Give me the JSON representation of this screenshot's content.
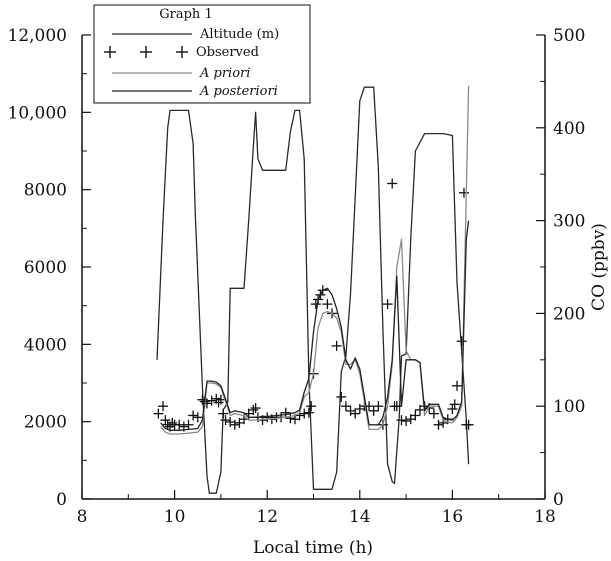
{
  "chart_data": {
    "type": "line",
    "legend": {
      "title": "Graph 1",
      "placement": "top-left",
      "entries": [
        "Altitude (m)",
        "Observed",
        "A priori",
        "A posteriori"
      ]
    },
    "xlabel": "Local time (h)",
    "ylabel_left": "",
    "ylabel_right": "CO (ppbv)",
    "xlim": [
      8,
      18
    ],
    "ylim_left": [
      0,
      12000
    ],
    "ylim_right": [
      0,
      500
    ],
    "x_ticks": [
      "8",
      "10",
      "12",
      "14",
      "16",
      "18"
    ],
    "y_left_ticks": [
      "0",
      "2000",
      "4000",
      "6000",
      "8000",
      "10,000",
      "12,000"
    ],
    "y_right_ticks": [
      "0",
      "100",
      "200",
      "300",
      "400",
      "500"
    ],
    "grid": false,
    "series": [
      {
        "name": "Altitude (m)",
        "axis": "left",
        "style": "line",
        "color": "#2a2a2a",
        "x": [
          9.62,
          9.75,
          9.85,
          9.9,
          10.1,
          10.3,
          10.4,
          10.45,
          10.6,
          10.7,
          10.75,
          10.8,
          10.9,
          11.0,
          11.05,
          11.15,
          11.2,
          11.4,
          11.5,
          11.6,
          11.7,
          11.75,
          11.8,
          11.9,
          12.0,
          12.2,
          12.4,
          12.5,
          12.6,
          12.7,
          12.8,
          12.9,
          13.0,
          13.1,
          13.2,
          13.4,
          13.5,
          13.6,
          13.7,
          13.8,
          13.9,
          14.0,
          14.1,
          14.2,
          14.3,
          14.4,
          14.5,
          14.6,
          14.7,
          14.75,
          14.85,
          14.9,
          15.0,
          15.1,
          15.2,
          15.4,
          15.5,
          15.6,
          15.8,
          16.0,
          16.1,
          16.3,
          16.35
        ],
        "values": [
          3600,
          7200,
          9600,
          10050,
          10050,
          10050,
          9200,
          7300,
          2900,
          600,
          150,
          150,
          150,
          700,
          2300,
          2500,
          5450,
          5450,
          5450,
          7200,
          9100,
          10000,
          8800,
          8500,
          8500,
          8500,
          8500,
          9500,
          10050,
          10050,
          8800,
          3100,
          250,
          250,
          250,
          250,
          700,
          3300,
          3700,
          5300,
          7800,
          10300,
          10650,
          10650,
          10650,
          8600,
          4400,
          900,
          450,
          400,
          2100,
          3700,
          3750,
          6700,
          9000,
          9450,
          9450,
          9450,
          9450,
          9400,
          5600,
          2050,
          900
        ]
      },
      {
        "name": "Observed",
        "axis": "right",
        "style": "markers",
        "marker": "plus",
        "x": [
          9.65,
          9.75,
          9.8,
          9.85,
          9.9,
          9.95,
          10.0,
          10.1,
          10.2,
          10.3,
          10.4,
          10.5,
          10.6,
          10.65,
          10.7,
          10.8,
          10.9,
          10.95,
          11.0,
          11.05,
          11.1,
          11.2,
          11.3,
          11.4,
          11.5,
          11.6,
          11.7,
          11.75,
          11.8,
          11.9,
          12.0,
          12.1,
          12.2,
          12.3,
          12.4,
          12.5,
          12.6,
          12.7,
          12.8,
          12.9,
          12.95,
          13.0,
          13.05,
          13.1,
          13.15,
          13.2,
          13.3,
          13.4,
          13.5,
          13.6,
          13.7,
          13.8,
          13.9,
          14.0,
          14.1,
          14.2,
          14.3,
          14.4,
          14.5,
          14.6,
          14.7,
          14.75,
          14.8,
          14.9,
          15.0,
          15.1,
          15.2,
          15.3,
          15.4,
          15.5,
          15.6,
          15.7,
          15.8,
          15.9,
          16.0,
          16.05,
          16.1,
          16.2,
          16.25,
          16.3,
          16.35
        ],
        "values": [
          92,
          100,
          85,
          80,
          78,
          82,
          80,
          80,
          78,
          80,
          90,
          88,
          107,
          105,
          103,
          106,
          108,
          104,
          107,
          92,
          85,
          83,
          80,
          82,
          86,
          92,
          96,
          98,
          88,
          85,
          88,
          86,
          88,
          88,
          93,
          87,
          86,
          90,
          92,
          93,
          100,
          135,
          210,
          215,
          220,
          225,
          210,
          200,
          165,
          110,
          100,
          95,
          92,
          97,
          100,
          100,
          95,
          100,
          80,
          210,
          340,
          100,
          100,
          85,
          84,
          86,
          90,
          96,
          100,
          98,
          92,
          80,
          82,
          86,
          97,
          102,
          122,
          170,
          330,
          80,
          80
        ]
      },
      {
        "name": "A priori",
        "axis": "right",
        "style": "line",
        "color": "#8a8a8a",
        "x": [
          9.7,
          9.8,
          9.9,
          10.0,
          10.1,
          10.3,
          10.5,
          10.6,
          10.7,
          10.8,
          10.9,
          11.0,
          11.1,
          11.2,
          11.3,
          11.5,
          11.6,
          11.7,
          11.8,
          11.9,
          12.0,
          12.2,
          12.4,
          12.5,
          12.6,
          12.7,
          12.8,
          12.9,
          13.0,
          13.1,
          13.2,
          13.3,
          13.4,
          13.5,
          13.6,
          13.7,
          13.8,
          13.9,
          14.0,
          14.2,
          14.4,
          14.5,
          14.6,
          14.7,
          14.8,
          14.9,
          15.0,
          15.1,
          15.2,
          15.3,
          15.4,
          15.5,
          15.6,
          15.7,
          15.8,
          15.9,
          16.0,
          16.1,
          16.2,
          16.3,
          16.35
        ],
        "values": [
          78,
          72,
          70,
          70,
          70,
          71,
          72,
          78,
          125,
          125,
          124,
          120,
          105,
          90,
          92,
          90,
          85,
          85,
          85,
          86,
          86,
          87,
          88,
          89,
          90,
          93,
          110,
          115,
          135,
          185,
          200,
          202,
          200,
          195,
          180,
          145,
          145,
          150,
          135,
          75,
          75,
          80,
          100,
          145,
          250,
          280,
          160,
          150,
          150,
          147,
          90,
          100,
          100,
          100,
          85,
          83,
          82,
          88,
          100,
          330,
          445
        ]
      },
      {
        "name": "A posteriori",
        "axis": "right",
        "style": "line",
        "color": "#222222",
        "x": [
          9.7,
          9.8,
          9.9,
          10.0,
          10.1,
          10.3,
          10.5,
          10.6,
          10.7,
          10.8,
          10.9,
          11.0,
          11.1,
          11.2,
          11.3,
          11.5,
          11.6,
          11.7,
          11.8,
          11.9,
          12.0,
          12.2,
          12.4,
          12.5,
          12.6,
          12.7,
          12.8,
          12.9,
          13.0,
          13.1,
          13.2,
          13.3,
          13.4,
          13.5,
          13.6,
          13.7,
          13.8,
          13.9,
          14.0,
          14.2,
          14.4,
          14.5,
          14.6,
          14.7,
          14.8,
          14.9,
          15.0,
          15.1,
          15.2,
          15.3,
          15.4,
          15.5,
          15.6,
          15.7,
          15.8,
          15.9,
          16.0,
          16.1,
          16.2,
          16.3,
          16.35
        ],
        "values": [
          82,
          76,
          74,
          74,
          74,
          75,
          76,
          85,
          127,
          127,
          126,
          122,
          108,
          93,
          95,
          93,
          88,
          88,
          88,
          89,
          89,
          90,
          91,
          92,
          93,
          96,
          115,
          130,
          180,
          215,
          225,
          227,
          220,
          205,
          185,
          150,
          140,
          152,
          140,
          80,
          80,
          88,
          110,
          150,
          240,
          100,
          150,
          150,
          150,
          147,
          95,
          102,
          102,
          102,
          88,
          86,
          85,
          90,
          105,
          280,
          300
        ]
      }
    ]
  }
}
